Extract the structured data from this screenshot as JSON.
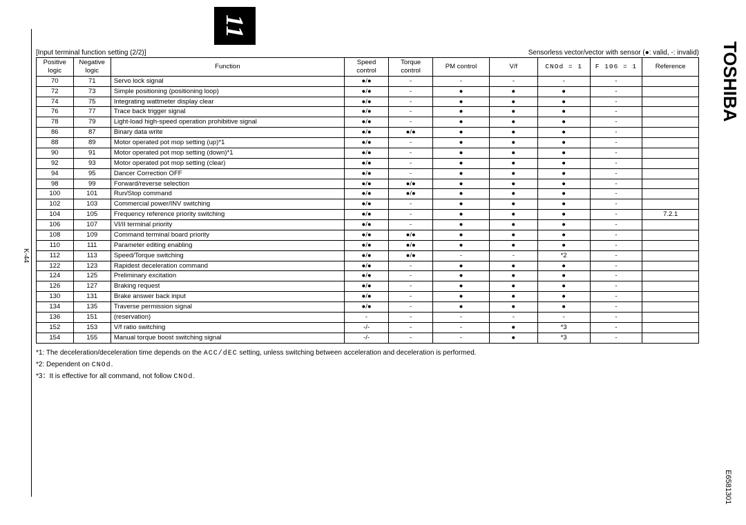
{
  "tab_number": "11",
  "brand": "TOSHIBA",
  "doc_code": "E6581301",
  "page_num": "K-44",
  "header_left": "[Input terminal function setting (2/2)]",
  "header_right": "Sensorless vector/vector with sensor (●: valid, -: invalid)",
  "columns": {
    "pos": "Positive logic",
    "neg": "Negative logic",
    "fn": "Function",
    "sc": "Speed control",
    "tc": "Torque control",
    "pm": "PM control",
    "vf": "V/f",
    "c1": "CNOd = 1",
    "c2": "F 106 = 1",
    "ref": "Reference"
  },
  "rows": [
    {
      "pos": "70",
      "neg": "71",
      "fn": "Servo lock signal",
      "sc": "●/●",
      "tc": "-",
      "pm": "-",
      "vf": "-",
      "c1": "-",
      "c2": "-",
      "ref": ""
    },
    {
      "pos": "72",
      "neg": "73",
      "fn": "Simple positioning (positioning loop)",
      "sc": "●/●",
      "tc": "-",
      "pm": "●",
      "vf": "●",
      "c1": "●",
      "c2": "-",
      "ref": ""
    },
    {
      "pos": "74",
      "neg": "75",
      "fn": "Integrating wattmeter display clear",
      "sc": "●/●",
      "tc": "-",
      "pm": "●",
      "vf": "●",
      "c1": "●",
      "c2": "-",
      "ref": ""
    },
    {
      "pos": "76",
      "neg": "77",
      "fn": "Trace back trigger signal",
      "sc": "●/●",
      "tc": "-",
      "pm": "●",
      "vf": "●",
      "c1": "●",
      "c2": "-",
      "ref": ""
    },
    {
      "pos": "78",
      "neg": "79",
      "fn": "Light-load high-speed operation prohibitive signal",
      "sc": "●/●",
      "tc": "-",
      "pm": "●",
      "vf": "●",
      "c1": "●",
      "c2": "-",
      "ref": ""
    },
    {
      "pos": "86",
      "neg": "87",
      "fn": "Binary data write",
      "sc": "●/●",
      "tc": "●/●",
      "pm": "●",
      "vf": "●",
      "c1": "●",
      "c2": "-",
      "ref": ""
    },
    {
      "pos": "88",
      "neg": "89",
      "fn": "Motor operated pot mop setting (up)*1",
      "sc": "●/●",
      "tc": "-",
      "pm": "●",
      "vf": "●",
      "c1": "●",
      "c2": "-",
      "ref": ""
    },
    {
      "pos": "90",
      "neg": "91",
      "fn": "Motor operated pot mop setting (down)*1",
      "sc": "●/●",
      "tc": "-",
      "pm": "●",
      "vf": "●",
      "c1": "●",
      "c2": "-",
      "ref": ""
    },
    {
      "pos": "92",
      "neg": "93",
      "fn": "Motor operated pot mop setting (clear)",
      "sc": "●/●",
      "tc": "-",
      "pm": "●",
      "vf": "●",
      "c1": "●",
      "c2": "-",
      "ref": ""
    },
    {
      "pos": "94",
      "neg": "95",
      "fn": "Dancer Correction OFF",
      "sc": "●/●",
      "tc": "-",
      "pm": "●",
      "vf": "●",
      "c1": "●",
      "c2": "-",
      "ref": ""
    },
    {
      "pos": "98",
      "neg": "99",
      "fn": "Forward/reverse selection",
      "sc": "●/●",
      "tc": "●/●",
      "pm": "●",
      "vf": "●",
      "c1": "●",
      "c2": "-",
      "ref": ""
    },
    {
      "pos": "100",
      "neg": "101",
      "fn": "Run/Stop command",
      "sc": "●/●",
      "tc": "●/●",
      "pm": "●",
      "vf": "●",
      "c1": "●",
      "c2": "-",
      "ref": ""
    },
    {
      "pos": "102",
      "neg": "103",
      "fn": "Commercial power/INV switching",
      "sc": "●/●",
      "tc": "-",
      "pm": "●",
      "vf": "●",
      "c1": "●",
      "c2": "-",
      "ref": ""
    },
    {
      "pos": "104",
      "neg": "105",
      "fn": "Frequency reference priority switching",
      "sc": "●/●",
      "tc": "-",
      "pm": "●",
      "vf": "●",
      "c1": "●",
      "c2": "-",
      "ref": "7.2.1"
    },
    {
      "pos": "106",
      "neg": "107",
      "fn": "VI/II terminal priority",
      "sc": "●/●",
      "tc": "-",
      "pm": "●",
      "vf": "●",
      "c1": "●",
      "c2": "-",
      "ref": ""
    },
    {
      "pos": "108",
      "neg": "109",
      "fn": "Command terminal board priority",
      "sc": "●/●",
      "tc": "●/●",
      "pm": "●",
      "vf": "●",
      "c1": "●",
      "c2": "-",
      "ref": ""
    },
    {
      "pos": "110",
      "neg": "111",
      "fn": "Parameter editing enabling",
      "sc": "●/●",
      "tc": "●/●",
      "pm": "●",
      "vf": "●",
      "c1": "●",
      "c2": "-",
      "ref": ""
    },
    {
      "pos": "112",
      "neg": "113",
      "fn": "Speed/Torque switching",
      "sc": "●/●",
      "tc": "●/●",
      "pm": "-",
      "vf": "-",
      "c1": "*2",
      "c2": "-",
      "ref": ""
    },
    {
      "pos": "122",
      "neg": "123",
      "fn": "Rapidest deceleration command",
      "sc": "●/●",
      "tc": "-",
      "pm": "●",
      "vf": "●",
      "c1": "●",
      "c2": "-",
      "ref": ""
    },
    {
      "pos": "124",
      "neg": "125",
      "fn": "Preliminary excitation",
      "sc": "●/●",
      "tc": "-",
      "pm": "●",
      "vf": "●",
      "c1": "●",
      "c2": "-",
      "ref": ""
    },
    {
      "pos": "126",
      "neg": "127",
      "fn": "Braking request",
      "sc": "●/●",
      "tc": "-",
      "pm": "●",
      "vf": "●",
      "c1": "●",
      "c2": "-",
      "ref": ""
    },
    {
      "pos": "130",
      "neg": "131",
      "fn": "Brake answer back input",
      "sc": "●/●",
      "tc": "-",
      "pm": "●",
      "vf": "●",
      "c1": "●",
      "c2": "-",
      "ref": ""
    },
    {
      "pos": "134",
      "neg": "135",
      "fn": "Traverse permission signal",
      "sc": "●/●",
      "tc": "-",
      "pm": "●",
      "vf": "●",
      "c1": "●",
      "c2": "-",
      "ref": ""
    },
    {
      "pos": "136",
      "neg": "151",
      "fn": "(reservation)",
      "sc": "-",
      "tc": "-",
      "pm": "-",
      "vf": "-",
      "c1": "-",
      "c2": "-",
      "ref": ""
    },
    {
      "pos": "152",
      "neg": "153",
      "fn": "V/f ratio switching",
      "sc": "-/-",
      "tc": "-",
      "pm": "-",
      "vf": "●",
      "c1": "*3",
      "c2": "-",
      "ref": ""
    },
    {
      "pos": "154",
      "neg": "155",
      "fn": "Manual torque boost switching signal",
      "sc": "-/-",
      "tc": "-",
      "pm": "-",
      "vf": "●",
      "c1": "*3",
      "c2": "-",
      "ref": ""
    }
  ],
  "notes": {
    "n1_a": "*1: The deceleration/deceleration time depends on the ",
    "n1_seg": "ACC/dEC",
    "n1_b": " setting, unless switching between acceleration and deceleration is performed.",
    "n2_a": "*2: Dependent on ",
    "n2_seg": "CNOd",
    "n2_b": ".",
    "n3_a": "*3：It is effective for all command, not follow ",
    "n3_seg": "CNOd",
    "n3_b": "."
  }
}
